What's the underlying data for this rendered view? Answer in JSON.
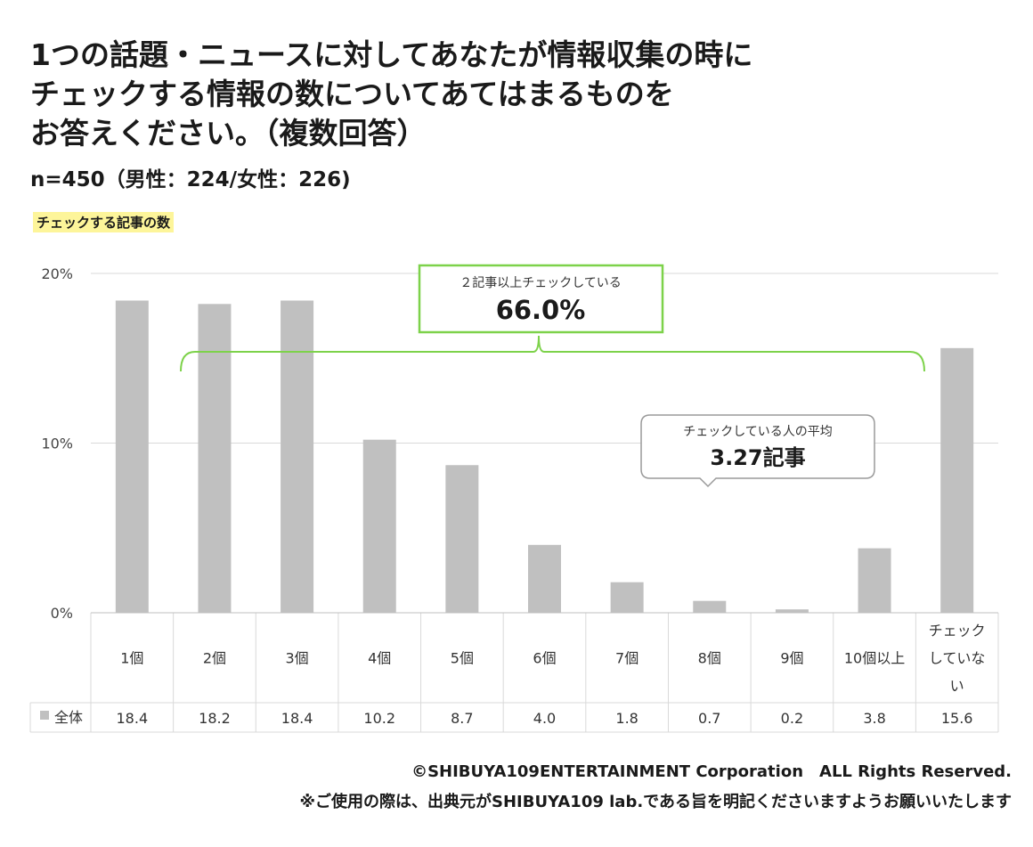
{
  "title_lines": [
    "1つの話題・ニュースに対してあなたが情報収集の時に",
    "チェックする情報の数についてあてはまるものを",
    "お答えください。（複数回答）"
  ],
  "sample": "n=450（男性：224/女性：226)",
  "section_label": "チェックする記事の数",
  "callout_range": {
    "caption": "２記事以上チェックしている",
    "value": "66.0%"
  },
  "callout_avg": {
    "caption": "チェックしている人の平均",
    "value": "3.27記事"
  },
  "chart_data": {
    "type": "bar",
    "categories": [
      "1個",
      "2個",
      "3個",
      "4個",
      "5個",
      "6個",
      "7個",
      "8個",
      "9個",
      "10個以上",
      "チェックしていない"
    ],
    "category_label_lines": [
      [
        "1個"
      ],
      [
        "2個"
      ],
      [
        "3個"
      ],
      [
        "4個"
      ],
      [
        "5個"
      ],
      [
        "6個"
      ],
      [
        "7個"
      ],
      [
        "8個"
      ],
      [
        "9個"
      ],
      [
        "10個以上"
      ],
      [
        "チェック",
        "していな",
        "い"
      ]
    ],
    "series": [
      {
        "name": "全体",
        "values": [
          18.4,
          18.2,
          18.4,
          10.2,
          8.7,
          4.0,
          1.8,
          0.7,
          0.2,
          3.8,
          15.6
        ]
      }
    ],
    "table_values": [
      "18.4",
      "18.2",
      "18.4",
      "10.2",
      "8.7",
      "4.0",
      "1.8",
      "0.7",
      "0.2",
      "3.8",
      "15.6"
    ],
    "yticks": [
      "0%",
      "10%",
      "20%"
    ],
    "ylim": [
      0,
      20
    ],
    "bar_color": "#c0c0c0",
    "accent_color": "#7dd24a",
    "grid": true
  },
  "footer": {
    "copyright": "©SHIBUYA109ENTERTAINMENT Corporation　ALL Rights Reserved.",
    "note": "※ご使用の際は、出典元がSHIBUYA109 lab.である旨を明記くださいますようお願いいたします"
  }
}
